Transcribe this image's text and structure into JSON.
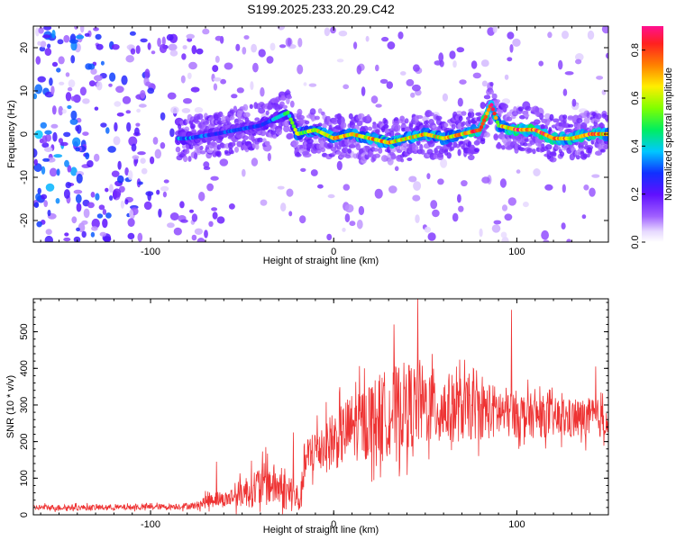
{
  "figure_title": "S199.2025.233.20.29.C42",
  "chart_data": [
    {
      "type": "heatmap",
      "title": "S199.2025.233.20.29.C42",
      "xlabel": "Height of straight line (km)",
      "ylabel": "Frequency (Hz)",
      "xlim": [
        -164,
        150
      ],
      "ylim": [
        -25,
        25
      ],
      "xticks": [
        -100,
        0,
        100
      ],
      "yticks": [
        -20,
        -10,
        0,
        10,
        20
      ],
      "colorbar": {
        "label": "Normalized spectral amplitude",
        "range": [
          0.0,
          0.9
        ],
        "ticks": [
          0.0,
          0.2,
          0.4,
          0.6,
          0.8
        ]
      },
      "ridge": {
        "description": "Main energy ridge near 0 Hz",
        "points": [
          {
            "x": -80,
            "y": -1,
            "amp": 0.35
          },
          {
            "x": -65,
            "y": 0,
            "amp": 0.3
          },
          {
            "x": -40,
            "y": 2,
            "amp": 0.3
          },
          {
            "x": -25,
            "y": 5,
            "amp": 0.45
          },
          {
            "x": -20,
            "y": 0,
            "amp": 0.6
          },
          {
            "x": -10,
            "y": 1,
            "amp": 0.6
          },
          {
            "x": 0,
            "y": -1,
            "amp": 0.7
          },
          {
            "x": 10,
            "y": 0,
            "amp": 0.65
          },
          {
            "x": 20,
            "y": -1,
            "amp": 0.7
          },
          {
            "x": 30,
            "y": -2,
            "amp": 0.7
          },
          {
            "x": 40,
            "y": -1,
            "amp": 0.65
          },
          {
            "x": 50,
            "y": 0,
            "amp": 0.7
          },
          {
            "x": 60,
            "y": -1,
            "amp": 0.65
          },
          {
            "x": 70,
            "y": 0,
            "amp": 0.7
          },
          {
            "x": 80,
            "y": 1,
            "amp": 0.8
          },
          {
            "x": 86,
            "y": 7,
            "amp": 0.85
          },
          {
            "x": 90,
            "y": 2,
            "amp": 0.6
          },
          {
            "x": 100,
            "y": 1,
            "amp": 0.85
          },
          {
            "x": 110,
            "y": 1,
            "amp": 0.8
          },
          {
            "x": 120,
            "y": -1,
            "amp": 0.75
          },
          {
            "x": 130,
            "y": -1,
            "amp": 0.7
          },
          {
            "x": 140,
            "y": 0,
            "amp": 0.8
          },
          {
            "x": 148,
            "y": 0,
            "amp": 0.7
          }
        ]
      }
    },
    {
      "type": "line",
      "xlabel": "Height of straight line (km)",
      "ylabel": "SNR (10 * v/v)",
      "xlim": [
        -164,
        150
      ],
      "ylim": [
        0,
        590
      ],
      "xticks": [
        -100,
        0,
        100
      ],
      "yticks": [
        0,
        100,
        200,
        300,
        400,
        500
      ],
      "series": [
        {
          "name": "SNR",
          "color": "#ee3333",
          "envelope": {
            "x": [
              -164,
              -120,
              -90,
              -75,
              -66,
              -60,
              -50,
              -40,
              -34,
              -25,
              -18,
              -16,
              -10,
              0,
              10,
              20,
              30,
              40,
              50,
              60,
              70,
              80,
              90,
              100,
              110,
              120,
              130,
              140,
              150
            ],
            "base": [
              20,
              20,
              22,
              25,
              45,
              40,
              60,
              80,
              85,
              60,
              40,
              140,
              180,
              200,
              240,
              260,
              280,
              300,
              300,
              290,
              290,
              285,
              280,
              275,
              270,
              265,
              260,
              265,
              260
            ],
            "noise": [
              8,
              8,
              8,
              10,
              25,
              20,
              40,
              60,
              60,
              50,
              40,
              60,
              70,
              80,
              95,
              110,
              120,
              120,
              110,
              100,
              90,
              80,
              75,
              65,
              60,
              55,
              55,
              55,
              50
            ]
          },
          "peaks": [
            {
              "x": -64,
              "y": 145
            },
            {
              "x": -37,
              "y": 185
            },
            {
              "x": -22,
              "y": 225
            },
            {
              "x": 33,
              "y": 520
            },
            {
              "x": 46,
              "y": 590
            },
            {
              "x": 97,
              "y": 560
            },
            {
              "x": 143,
              "y": 405
            }
          ]
        }
      ]
    }
  ]
}
